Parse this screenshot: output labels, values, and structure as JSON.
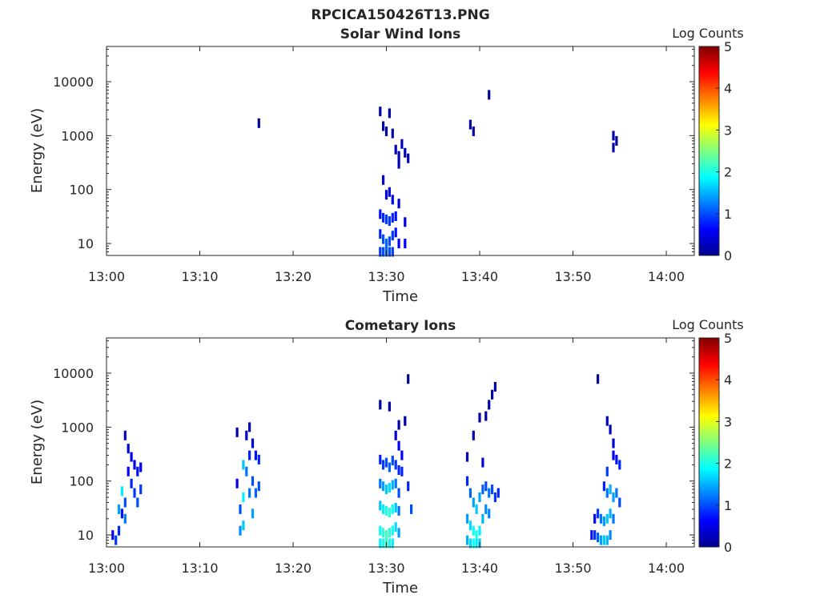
{
  "figure_title": "RPCICA150426T13.PNG",
  "colors": {
    "axis": "#262626",
    "background": "#ffffff",
    "low_count": "#00008f",
    "mid_count": "#00bfff",
    "high_count": "#800000"
  },
  "colormap": "jet",
  "chart_data": [
    {
      "type": "heatmap",
      "title": "Solar Wind Ions",
      "xlabel": "Time",
      "ylabel": "Energy (eV)",
      "yscale": "log",
      "ylim": [
        6,
        45000
      ],
      "xlim": [
        "13:00",
        "14:03"
      ],
      "xticks": [
        "13:00",
        "13:10",
        "13:20",
        "13:30",
        "13:40",
        "13:50",
        "14:00"
      ],
      "yticks": [
        10,
        100,
        1000,
        10000
      ],
      "ytick_labels": [
        "10",
        "100",
        "1000",
        "10000"
      ],
      "colorbar": {
        "label": "Log Counts",
        "range": [
          0,
          5
        ],
        "ticks": [
          "0",
          "1",
          "2",
          "3",
          "4",
          "5"
        ]
      },
      "cells": [
        [
          "13:16:20",
          1700,
          0.1
        ],
        [
          "13:29:20",
          2800,
          0.2
        ],
        [
          "13:29:40",
          1500,
          0.2
        ],
        [
          "13:30:20",
          2600,
          0.2
        ],
        [
          "13:30:00",
          1200,
          0.2
        ],
        [
          "13:30:40",
          1100,
          0.2
        ],
        [
          "13:31:00",
          550,
          0.3
        ],
        [
          "13:31:20",
          420,
          0.3
        ],
        [
          "13:31:40",
          700,
          0.3
        ],
        [
          "13:32:00",
          480,
          0.3
        ],
        [
          "13:32:20",
          380,
          0.3
        ],
        [
          "13:31:20",
          300,
          0.3
        ],
        [
          "13:29:40",
          150,
          0.4
        ],
        [
          "13:30:00",
          80,
          0.5
        ],
        [
          "13:30:20",
          90,
          0.5
        ],
        [
          "13:30:40",
          65,
          0.6
        ],
        [
          "13:29:20",
          35,
          0.7
        ],
        [
          "13:29:40",
          30,
          0.8
        ],
        [
          "13:30:00",
          28,
          0.9
        ],
        [
          "13:30:20",
          26,
          0.9
        ],
        [
          "13:30:40",
          30,
          0.8
        ],
        [
          "13:31:00",
          32,
          0.7
        ],
        [
          "13:31:20",
          55,
          0.4
        ],
        [
          "13:32:00",
          25,
          0.5
        ],
        [
          "13:29:20",
          15,
          0.8
        ],
        [
          "13:29:40",
          12,
          1.0
        ],
        [
          "13:30:00",
          10,
          1.1
        ],
        [
          "13:30:20",
          11,
          1.0
        ],
        [
          "13:30:40",
          14,
          0.9
        ],
        [
          "13:31:00",
          16,
          0.7
        ],
        [
          "13:31:20",
          10,
          0.6
        ],
        [
          "13:32:00",
          10,
          0.6
        ],
        [
          "13:29:20",
          7,
          0.9
        ],
        [
          "13:29:40",
          7,
          1.0
        ],
        [
          "13:30:00",
          7,
          1.1
        ],
        [
          "13:30:20",
          7,
          1.0
        ],
        [
          "13:30:40",
          7,
          0.9
        ],
        [
          "13:41:00",
          5700,
          0.1
        ],
        [
          "13:39:00",
          1600,
          0.2
        ],
        [
          "13:39:20",
          1200,
          0.2
        ],
        [
          "13:54:20",
          1000,
          0.2
        ],
        [
          "13:54:40",
          800,
          0.2
        ],
        [
          "13:54:20",
          600,
          0.2
        ]
      ]
    },
    {
      "type": "heatmap",
      "title": "Cometary Ions",
      "xlabel": "Time",
      "ylabel": "Energy (eV)",
      "yscale": "log",
      "ylim": [
        6,
        45000
      ],
      "xlim": [
        "13:00",
        "14:03"
      ],
      "xticks": [
        "13:00",
        "13:10",
        "13:20",
        "13:30",
        "13:40",
        "13:50",
        "14:00"
      ],
      "yticks": [
        10,
        100,
        1000,
        10000
      ],
      "ytick_labels": [
        "10",
        "100",
        "1000",
        "10000"
      ],
      "colorbar": {
        "label": "Log Counts",
        "range": [
          0,
          5
        ],
        "ticks": [
          "0",
          "1",
          "2",
          "3",
          "4",
          "5"
        ]
      },
      "cells": [
        [
          "13:00:40",
          10,
          0.6
        ],
        [
          "13:01:00",
          8,
          0.9
        ],
        [
          "13:01:20",
          12,
          0.8
        ],
        [
          "13:01:40",
          25,
          0.7
        ],
        [
          "13:02:00",
          40,
          1.0
        ],
        [
          "13:02:00",
          700,
          0.3
        ],
        [
          "13:02:20",
          400,
          0.4
        ],
        [
          "13:02:20",
          150,
          0.6
        ],
        [
          "13:02:40",
          280,
          0.5
        ],
        [
          "13:02:40",
          90,
          0.8
        ],
        [
          "13:03:00",
          200,
          0.6
        ],
        [
          "13:03:00",
          60,
          0.9
        ],
        [
          "13:03:20",
          150,
          0.7
        ],
        [
          "13:03:20",
          40,
          1.0
        ],
        [
          "13:03:40",
          180,
          0.6
        ],
        [
          "13:03:40",
          70,
          0.9
        ],
        [
          "13:01:20",
          30,
          1.4
        ],
        [
          "13:01:40",
          65,
          1.8
        ],
        [
          "13:02:00",
          20,
          1.2
        ],
        [
          "13:14:00",
          90,
          0.5
        ],
        [
          "13:14:20",
          30,
          1.0
        ],
        [
          "13:14:20",
          12,
          1.3
        ],
        [
          "13:14:40",
          200,
          1.6
        ],
        [
          "13:14:40",
          50,
          1.8
        ],
        [
          "13:14:40",
          15,
          1.6
        ],
        [
          "13:15:00",
          700,
          0.4
        ],
        [
          "13:15:00",
          150,
          1.2
        ],
        [
          "13:15:20",
          1000,
          0.3
        ],
        [
          "13:15:20",
          300,
          0.8
        ],
        [
          "13:15:20",
          60,
          1.2
        ],
        [
          "13:15:40",
          500,
          0.5
        ],
        [
          "13:15:40",
          100,
          1.0
        ],
        [
          "13:15:40",
          25,
          1.4
        ],
        [
          "13:16:00",
          300,
          0.7
        ],
        [
          "13:16:00",
          60,
          1.1
        ],
        [
          "13:16:20",
          250,
          0.8
        ],
        [
          "13:16:20",
          80,
          1.0
        ],
        [
          "13:14:00",
          800,
          0.2
        ],
        [
          "13:29:20",
          2600,
          0.2
        ],
        [
          "13:30:20",
          2400,
          0.2
        ],
        [
          "13:31:20",
          1100,
          0.2
        ],
        [
          "13:32:00",
          1300,
          0.2
        ],
        [
          "13:32:20",
          7800,
          0.1
        ],
        [
          "13:31:00",
          700,
          0.4
        ],
        [
          "13:31:20",
          450,
          0.6
        ],
        [
          "13:31:40",
          300,
          0.6
        ],
        [
          "13:29:20",
          250,
          0.8
        ],
        [
          "13:29:40",
          200,
          0.9
        ],
        [
          "13:30:00",
          220,
          1.0
        ],
        [
          "13:30:20",
          180,
          1.1
        ],
        [
          "13:30:40",
          240,
          1.0
        ],
        [
          "13:31:00",
          200,
          0.9
        ],
        [
          "13:31:20",
          160,
          0.8
        ],
        [
          "13:31:40",
          150,
          0.8
        ],
        [
          "13:29:20",
          90,
          1.2
        ],
        [
          "13:29:40",
          80,
          1.4
        ],
        [
          "13:30:00",
          70,
          1.6
        ],
        [
          "13:30:20",
          75,
          1.7
        ],
        [
          "13:30:40",
          85,
          1.5
        ],
        [
          "13:31:00",
          90,
          1.2
        ],
        [
          "13:31:20",
          60,
          1.0
        ],
        [
          "13:32:20",
          80,
          0.8
        ],
        [
          "13:29:20",
          35,
          1.6
        ],
        [
          "13:29:40",
          30,
          1.8
        ],
        [
          "13:30:00",
          28,
          2.0
        ],
        [
          "13:30:20",
          26,
          2.1
        ],
        [
          "13:30:40",
          30,
          1.9
        ],
        [
          "13:31:00",
          32,
          1.6
        ],
        [
          "13:31:20",
          28,
          1.2
        ],
        [
          "13:32:40",
          30,
          1.0
        ],
        [
          "13:29:20",
          12,
          1.9
        ],
        [
          "13:29:40",
          11,
          2.1
        ],
        [
          "13:30:00",
          10,
          2.2
        ],
        [
          "13:30:20",
          11,
          2.1
        ],
        [
          "13:30:40",
          12,
          1.9
        ],
        [
          "13:31:00",
          14,
          1.7
        ],
        [
          "13:31:20",
          11,
          1.4
        ],
        [
          "13:29:20",
          7,
          1.8
        ],
        [
          "13:29:40",
          7,
          2.0
        ],
        [
          "13:30:00",
          7,
          2.1
        ],
        [
          "13:30:20",
          7,
          2.0
        ],
        [
          "13:30:40",
          7,
          1.8
        ],
        [
          "13:39:20",
          700,
          0.2
        ],
        [
          "13:40:00",
          1500,
          0.2
        ],
        [
          "13:40:40",
          1600,
          0.2
        ],
        [
          "13:41:00",
          2600,
          0.2
        ],
        [
          "13:41:20",
          4000,
          0.2
        ],
        [
          "13:41:40",
          5600,
          0.2
        ],
        [
          "13:38:40",
          280,
          0.3
        ],
        [
          "13:40:20",
          220,
          0.4
        ],
        [
          "13:38:40",
          100,
          0.8
        ],
        [
          "13:39:00",
          60,
          1.1
        ],
        [
          "13:39:20",
          40,
          1.4
        ],
        [
          "13:39:40",
          30,
          1.6
        ],
        [
          "13:40:00",
          50,
          1.4
        ],
        [
          "13:40:20",
          70,
          1.1
        ],
        [
          "13:40:40",
          80,
          1.0
        ],
        [
          "13:41:00",
          60,
          1.2
        ],
        [
          "13:41:20",
          70,
          1.0
        ],
        [
          "13:41:40",
          50,
          0.9
        ],
        [
          "13:42:00",
          60,
          0.8
        ],
        [
          "13:38:40",
          20,
          1.4
        ],
        [
          "13:39:00",
          15,
          1.7
        ],
        [
          "13:39:20",
          12,
          1.9
        ],
        [
          "13:39:40",
          10,
          2.0
        ],
        [
          "13:40:00",
          12,
          1.8
        ],
        [
          "13:40:20",
          20,
          1.5
        ],
        [
          "13:40:40",
          30,
          1.3
        ],
        [
          "13:41:00",
          25,
          1.3
        ],
        [
          "13:38:40",
          8,
          1.5
        ],
        [
          "13:39:00",
          7,
          1.7
        ],
        [
          "13:39:20",
          7,
          1.9
        ],
        [
          "13:39:40",
          7,
          1.8
        ],
        [
          "13:40:00",
          7,
          1.6
        ],
        [
          "13:52:40",
          7800,
          0.1
        ],
        [
          "13:53:40",
          1300,
          0.3
        ],
        [
          "13:54:00",
          900,
          0.3
        ],
        [
          "13:54:20",
          500,
          0.4
        ],
        [
          "13:54:20",
          300,
          0.6
        ],
        [
          "13:54:40",
          250,
          0.7
        ],
        [
          "13:55:00",
          200,
          0.8
        ],
        [
          "13:53:40",
          150,
          0.9
        ],
        [
          "13:53:20",
          80,
          0.8
        ],
        [
          "13:53:40",
          60,
          1.2
        ],
        [
          "13:54:00",
          70,
          1.5
        ],
        [
          "13:54:20",
          50,
          1.4
        ],
        [
          "13:54:40",
          60,
          1.2
        ],
        [
          "13:55:00",
          40,
          1.0
        ],
        [
          "13:52:20",
          20,
          0.6
        ],
        [
          "13:52:40",
          25,
          0.9
        ],
        [
          "13:53:00",
          20,
          1.2
        ],
        [
          "13:53:20",
          18,
          1.4
        ],
        [
          "13:53:40",
          20,
          1.6
        ],
        [
          "13:54:00",
          25,
          1.5
        ],
        [
          "13:54:20",
          20,
          1.2
        ],
        [
          "13:52:00",
          10,
          0.7
        ],
        [
          "13:52:20",
          10,
          0.8
        ],
        [
          "13:52:40",
          9,
          1.1
        ],
        [
          "13:53:00",
          8,
          1.4
        ],
        [
          "13:53:20",
          8,
          1.6
        ],
        [
          "13:53:40",
          8,
          1.5
        ],
        [
          "13:54:00",
          10,
          1.3
        ]
      ]
    }
  ]
}
